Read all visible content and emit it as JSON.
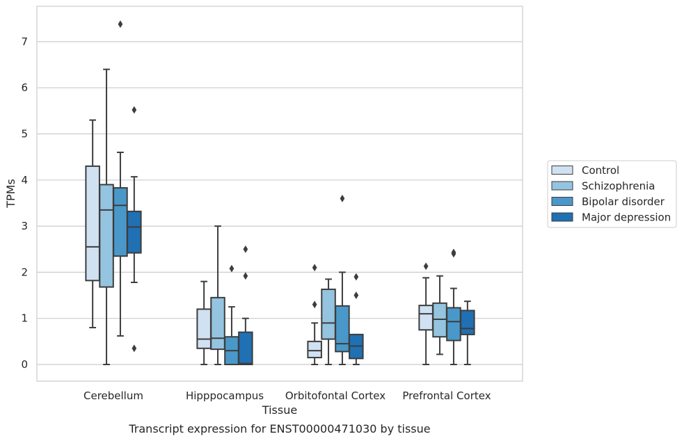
{
  "chart_data": {
    "type": "box",
    "title": "",
    "caption": "Transcript expression for ENST00000471030 by tissue",
    "xlabel": "Tissue",
    "ylabel": "TPMs",
    "ylim": [
      -0.35,
      7.75
    ],
    "yticks": [
      0,
      1,
      2,
      3,
      4,
      5,
      6,
      7
    ],
    "grid": "horizontal",
    "legend_position": "right",
    "categories": [
      "Cerebellum",
      "Hipppocampus",
      "Orbitofontal Cortex",
      "Prefrontal Cortex"
    ],
    "series": [
      {
        "name": "Control",
        "color": "#d0e1f2",
        "boxes": [
          {
            "whisker_low": 0.8,
            "q1": 1.82,
            "median": 2.55,
            "q3": 4.3,
            "whisker_high": 5.3,
            "outliers": []
          },
          {
            "whisker_low": 0.0,
            "q1": 0.35,
            "median": 0.55,
            "q3": 1.2,
            "whisker_high": 1.8,
            "outliers": []
          },
          {
            "whisker_low": 0.0,
            "q1": 0.15,
            "median": 0.3,
            "q3": 0.5,
            "whisker_high": 0.9,
            "outliers": [
              1.3,
              2.1
            ]
          },
          {
            "whisker_low": 0.0,
            "q1": 0.75,
            "median": 1.1,
            "q3": 1.28,
            "whisker_high": 1.88,
            "outliers": [
              2.13
            ]
          }
        ]
      },
      {
        "name": "Schizophrenia",
        "color": "#94c4df",
        "boxes": [
          {
            "whisker_low": 0.0,
            "q1": 1.68,
            "median": 3.35,
            "q3": 3.9,
            "whisker_high": 6.4,
            "outliers": []
          },
          {
            "whisker_low": 0.0,
            "q1": 0.33,
            "median": 0.57,
            "q3": 1.45,
            "whisker_high": 3.0,
            "outliers": []
          },
          {
            "whisker_low": 0.0,
            "q1": 0.55,
            "median": 0.9,
            "q3": 1.63,
            "whisker_high": 1.85,
            "outliers": []
          },
          {
            "whisker_low": 0.22,
            "q1": 0.6,
            "median": 0.98,
            "q3": 1.33,
            "whisker_high": 1.92,
            "outliers": []
          }
        ]
      },
      {
        "name": "Bipolar disorder",
        "color": "#4a98c9",
        "boxes": [
          {
            "whisker_low": 0.62,
            "q1": 2.35,
            "median": 3.45,
            "q3": 3.83,
            "whisker_high": 4.6,
            "outliers": [
              7.38
            ]
          },
          {
            "whisker_low": 0.0,
            "q1": 0.0,
            "median": 0.3,
            "q3": 0.6,
            "whisker_high": 1.25,
            "outliers": [
              2.08
            ]
          },
          {
            "whisker_low": 0.0,
            "q1": 0.28,
            "median": 0.45,
            "q3": 1.27,
            "whisker_high": 2.0,
            "outliers": [
              3.6
            ]
          },
          {
            "whisker_low": 0.0,
            "q1": 0.52,
            "median": 0.93,
            "q3": 1.23,
            "whisker_high": 1.65,
            "outliers": [
              2.4,
              2.43
            ]
          }
        ]
      },
      {
        "name": "Major depression",
        "color": "#2070b4",
        "boxes": [
          {
            "whisker_low": 1.78,
            "q1": 2.42,
            "median": 2.98,
            "q3": 3.32,
            "whisker_high": 4.07,
            "outliers": [
              5.52,
              0.35
            ]
          },
          {
            "whisker_low": 0.0,
            "q1": 0.0,
            "median": 0.02,
            "q3": 0.7,
            "whisker_high": 1.0,
            "outliers": [
              1.92,
              2.5
            ]
          },
          {
            "whisker_low": 0.0,
            "q1": 0.13,
            "median": 0.4,
            "q3": 0.65,
            "whisker_high": 0.65,
            "outliers": [
              1.5,
              1.9
            ]
          },
          {
            "whisker_low": 0.0,
            "q1": 0.65,
            "median": 0.78,
            "q3": 1.17,
            "whisker_high": 1.37,
            "outliers": []
          }
        ]
      }
    ]
  }
}
